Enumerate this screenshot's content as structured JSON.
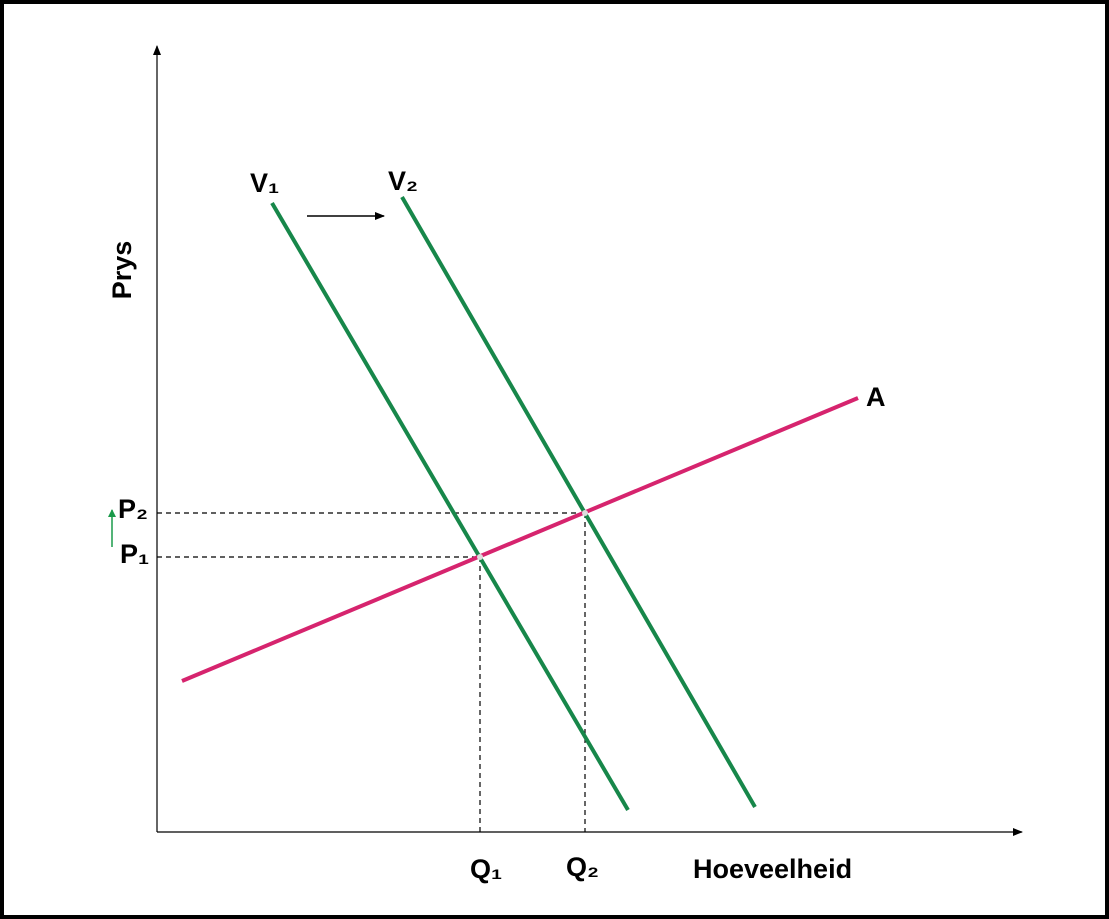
{
  "y_axis_label": "Prys",
  "x_axis_label": "Hoeveelheid",
  "curves": {
    "demand_1": "V₁",
    "demand_2": "V₂",
    "supply": "A"
  },
  "prices": [
    "P₁",
    "P₂"
  ],
  "quantities": [
    "Q₁",
    "Q₂"
  ]
}
